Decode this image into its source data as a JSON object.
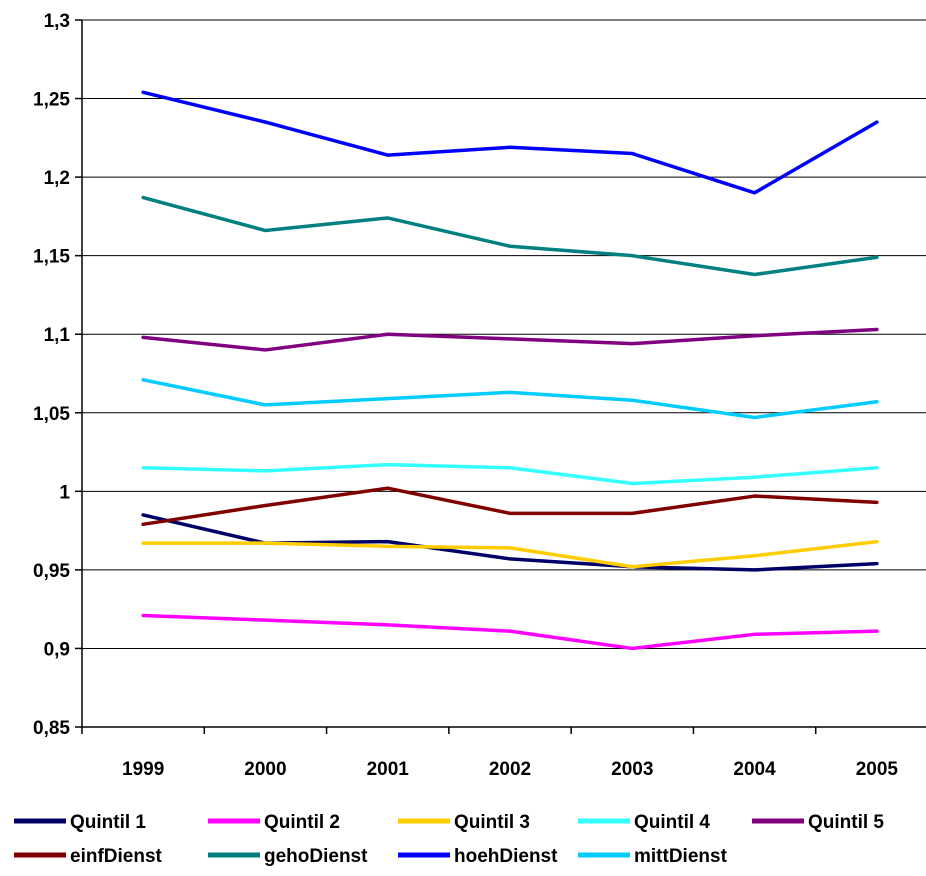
{
  "chart_data": {
    "type": "line",
    "title": "",
    "xlabel": "",
    "ylabel": "",
    "categories": [
      "1999",
      "2000",
      "2001",
      "2002",
      "2003",
      "2004",
      "2005"
    ],
    "ylim": [
      0.85,
      1.3
    ],
    "y_ticks": [
      "0,85",
      "0,9",
      "0,95",
      "1",
      "1,05",
      "1,1",
      "1,15",
      "1,2",
      "1,25",
      "1,3"
    ],
    "y_tick_values": [
      0.85,
      0.9,
      0.95,
      1.0,
      1.05,
      1.1,
      1.15,
      1.2,
      1.25,
      1.3
    ],
    "grid": "horizontal",
    "legend_position": "bottom",
    "series": [
      {
        "name": "Quintil 1",
        "color": "#000066",
        "values": [
          0.985,
          0.967,
          0.968,
          0.957,
          0.952,
          0.95,
          0.954
        ]
      },
      {
        "name": "Quintil 2",
        "color": "#ff00ff",
        "values": [
          0.921,
          0.918,
          0.915,
          0.911,
          0.9,
          0.909,
          0.911
        ]
      },
      {
        "name": "Quintil 3",
        "color": "#ffcc00",
        "values": [
          0.967,
          0.967,
          0.965,
          0.964,
          0.952,
          0.959,
          0.968
        ]
      },
      {
        "name": "Quintil 4",
        "color": "#33ffff",
        "values": [
          1.015,
          1.013,
          1.017,
          1.015,
          1.005,
          1.009,
          1.015
        ]
      },
      {
        "name": "Quintil 5",
        "color": "#800080",
        "values": [
          1.098,
          1.09,
          1.1,
          1.097,
          1.094,
          1.099,
          1.103
        ]
      },
      {
        "name": "einfDienst",
        "color": "#800000",
        "values": [
          0.979,
          0.991,
          1.002,
          0.986,
          0.986,
          0.997,
          0.993
        ]
      },
      {
        "name": "gehoDienst",
        "color": "#008080",
        "values": [
          1.187,
          1.166,
          1.174,
          1.156,
          1.15,
          1.138,
          1.149
        ]
      },
      {
        "name": "hoehDienst",
        "color": "#0000ff",
        "values": [
          1.254,
          1.235,
          1.214,
          1.219,
          1.215,
          1.19,
          1.235
        ]
      },
      {
        "name": "mittDienst",
        "color": "#00ccff",
        "values": [
          1.071,
          1.055,
          1.059,
          1.063,
          1.058,
          1.047,
          1.057
        ]
      }
    ]
  }
}
